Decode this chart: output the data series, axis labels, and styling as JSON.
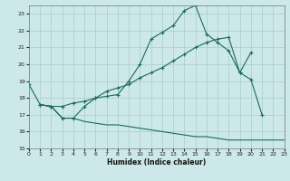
{
  "xlabel": "Humidex (Indice chaleur)",
  "bg_color": "#cce8e8",
  "grid_color": "#aacccc",
  "line_color": "#1a6b5a",
  "xlim": [
    0,
    23
  ],
  "ylim": [
    15,
    23.5
  ],
  "yticks": [
    15,
    16,
    17,
    18,
    19,
    20,
    21,
    22,
    23
  ],
  "xticks": [
    0,
    1,
    2,
    3,
    4,
    5,
    6,
    7,
    8,
    9,
    10,
    11,
    12,
    13,
    14,
    15,
    16,
    17,
    18,
    19,
    20,
    21,
    22,
    23
  ],
  "line1_x": [
    0,
    1,
    2,
    3,
    4,
    5,
    6,
    7,
    8,
    9,
    10,
    11,
    12,
    13,
    14,
    15,
    16,
    17,
    18,
    19,
    20,
    21
  ],
  "line1_y": [
    18.8,
    17.6,
    17.5,
    16.8,
    16.8,
    17.5,
    18.0,
    18.1,
    18.2,
    19.0,
    20.0,
    21.5,
    21.9,
    22.3,
    23.2,
    23.5,
    21.8,
    21.3,
    20.8,
    19.5,
    19.1,
    17.0
  ],
  "line2_x": [
    1,
    2,
    3,
    4,
    5,
    6,
    7,
    8,
    9,
    10,
    11,
    12,
    13,
    14,
    15,
    16,
    17,
    18,
    19,
    20
  ],
  "line2_y": [
    17.6,
    17.5,
    17.5,
    17.7,
    17.8,
    18.0,
    18.4,
    18.6,
    18.8,
    19.2,
    19.5,
    19.8,
    20.2,
    20.6,
    21.0,
    21.3,
    21.5,
    21.6,
    19.5,
    20.7
  ],
  "line3_x": [
    1,
    2,
    3,
    4,
    5,
    6,
    7,
    8,
    9,
    10,
    11,
    12,
    13,
    14,
    15,
    16,
    17,
    18,
    19,
    20,
    21,
    22,
    23
  ],
  "line3_y": [
    17.6,
    17.5,
    16.8,
    16.8,
    16.6,
    16.5,
    16.4,
    16.4,
    16.3,
    16.2,
    16.1,
    16.0,
    15.9,
    15.8,
    15.7,
    15.7,
    15.6,
    15.5,
    15.5,
    15.5,
    15.5,
    15.5,
    15.5
  ]
}
